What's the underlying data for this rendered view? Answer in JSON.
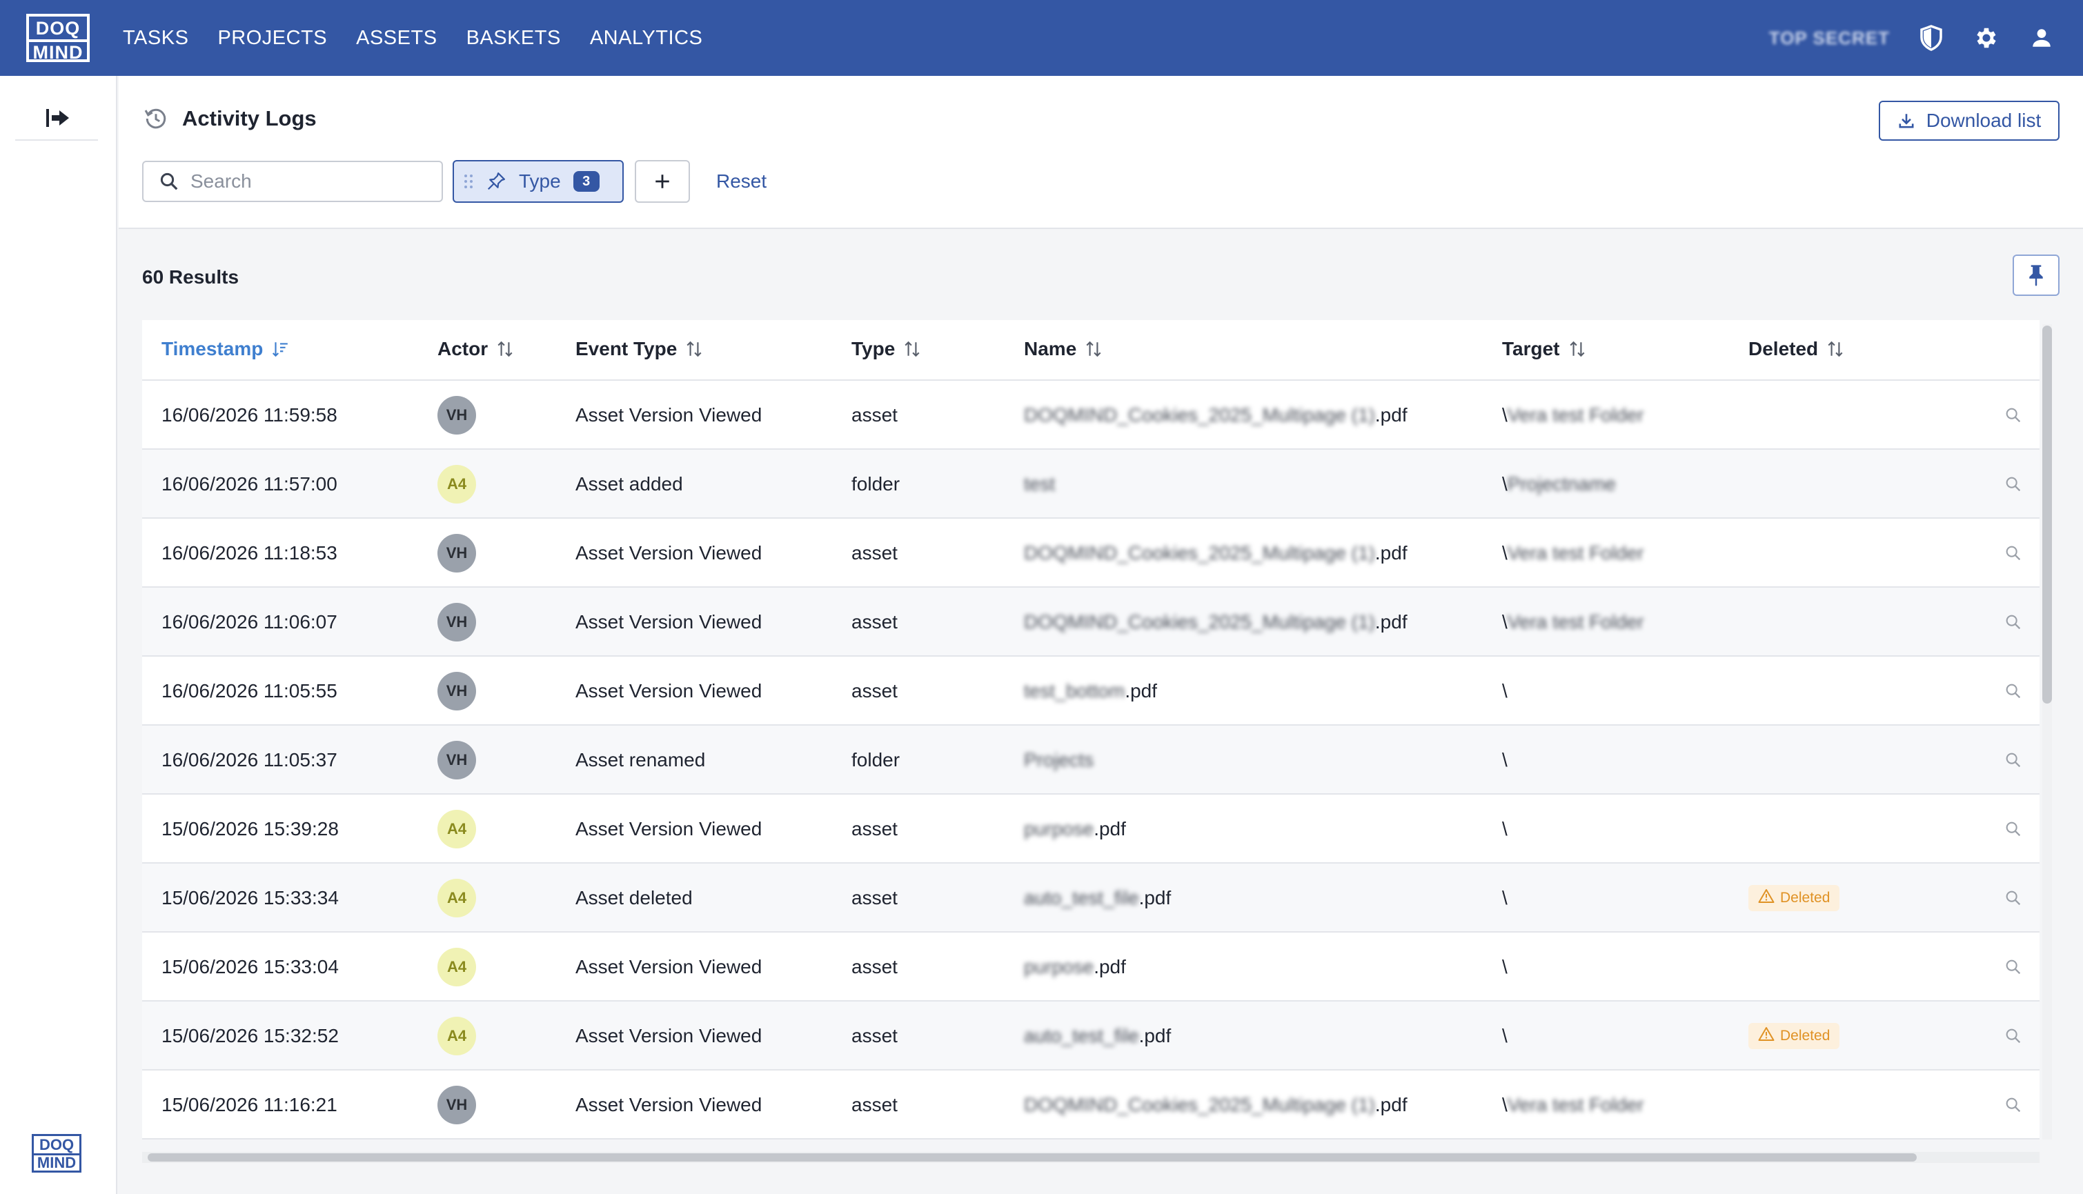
{
  "app": {
    "logo_line1": "DOQ",
    "logo_line2": "MIND",
    "nav": [
      "TASKS",
      "PROJECTS",
      "ASSETS",
      "BASKETS",
      "ANALYTICS"
    ],
    "env_badge": "TOP SECRET",
    "icons": [
      "shield-icon",
      "gear-icon",
      "user-icon"
    ],
    "accent": "#3457a4"
  },
  "page": {
    "title": "Activity Logs",
    "download_label": "Download list",
    "search_placeholder": "Search",
    "type_filter_label": "Type",
    "type_filter_count": "3",
    "reset_label": "Reset",
    "results": "60 Results"
  },
  "table": {
    "columns": [
      "Timestamp",
      "Actor",
      "Event Type",
      "Type",
      "Name",
      "Target",
      "Deleted"
    ],
    "deleted_label": "Deleted",
    "rows": [
      {
        "timestamp": "16/06/2026 11:59:58",
        "actor": "VH",
        "event": "Asset Version Viewed",
        "type": "asset",
        "name_blur": "DOQMIND_Cookies_2025_Multipage (1)",
        "name_ext": ".pdf",
        "target_prefix": "\\",
        "target_blur": "Vera test Folder",
        "deleted": false
      },
      {
        "timestamp": "16/06/2026 11:57:00",
        "actor": "A4",
        "event": "Asset added",
        "type": "folder",
        "name_blur": "test",
        "name_ext": "",
        "target_prefix": "\\",
        "target_blur": "Projectname",
        "deleted": false
      },
      {
        "timestamp": "16/06/2026 11:18:53",
        "actor": "VH",
        "event": "Asset Version Viewed",
        "type": "asset",
        "name_blur": "DOQMIND_Cookies_2025_Multipage (1)",
        "name_ext": ".pdf",
        "target_prefix": "\\",
        "target_blur": "Vera test Folder",
        "deleted": false
      },
      {
        "timestamp": "16/06/2026 11:06:07",
        "actor": "VH",
        "event": "Asset Version Viewed",
        "type": "asset",
        "name_blur": "DOQMIND_Cookies_2025_Multipage (1)",
        "name_ext": ".pdf",
        "target_prefix": "\\",
        "target_blur": "Vera test Folder",
        "deleted": false
      },
      {
        "timestamp": "16/06/2026 11:05:55",
        "actor": "VH",
        "event": "Asset Version Viewed",
        "type": "asset",
        "name_blur": "test_bottom",
        "name_ext": ".pdf",
        "target_prefix": "\\",
        "target_blur": "",
        "deleted": false
      },
      {
        "timestamp": "16/06/2026 11:05:37",
        "actor": "VH",
        "event": "Asset renamed",
        "type": "folder",
        "name_blur": "Projects",
        "name_ext": "",
        "target_prefix": "\\",
        "target_blur": "",
        "deleted": false
      },
      {
        "timestamp": "15/06/2026 15:39:28",
        "actor": "A4",
        "event": "Asset Version Viewed",
        "type": "asset",
        "name_blur": "purpose",
        "name_ext": ".pdf",
        "target_prefix": "\\",
        "target_blur": "",
        "deleted": false
      },
      {
        "timestamp": "15/06/2026 15:33:34",
        "actor": "A4",
        "event": "Asset deleted",
        "type": "asset",
        "name_blur": "auto_test_file",
        "name_ext": ".pdf",
        "target_prefix": "\\",
        "target_blur": "",
        "deleted": true
      },
      {
        "timestamp": "15/06/2026 15:33:04",
        "actor": "A4",
        "event": "Asset Version Viewed",
        "type": "asset",
        "name_blur": "purpose",
        "name_ext": ".pdf",
        "target_prefix": "\\",
        "target_blur": "",
        "deleted": false
      },
      {
        "timestamp": "15/06/2026 15:32:52",
        "actor": "A4",
        "event": "Asset Version Viewed",
        "type": "asset",
        "name_blur": "auto_test_file",
        "name_ext": ".pdf",
        "target_prefix": "\\",
        "target_blur": "",
        "deleted": true
      },
      {
        "timestamp": "15/06/2026 11:16:21",
        "actor": "VH",
        "event": "Asset Version Viewed",
        "type": "asset",
        "name_blur": "DOQMIND_Cookies_2025_Multipage (1)",
        "name_ext": ".pdf",
        "target_prefix": "\\",
        "target_blur": "Vera test Folder",
        "deleted": false
      }
    ]
  }
}
